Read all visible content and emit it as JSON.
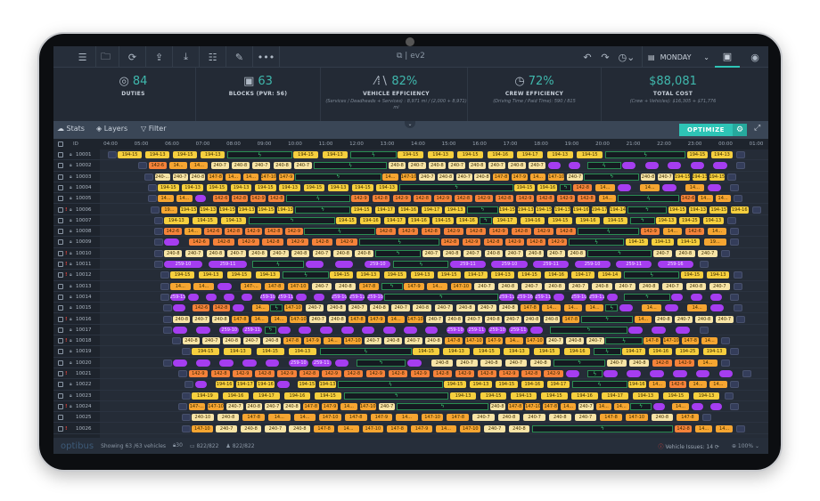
{
  "topbar": {
    "title": "ev2",
    "day": "MONDAY"
  },
  "kpis": [
    {
      "value": "84",
      "label": "DUTIES",
      "sub": ""
    },
    {
      "value": "63",
      "label": "BLOCKS (PVR: 56)",
      "sub": ""
    },
    {
      "value": "82%",
      "label": "VEHICLE EFFICIENCY",
      "sub": "(Services / Deadheads + Services) : 8,971 mi / (2,000 + 8,971) mi"
    },
    {
      "value": "72%",
      "label": "CREW EFFICIENCY",
      "sub": "(Driving Time / Paid Time): 590 / 815"
    },
    {
      "value": "$88,081",
      "label": "TOTAL COST",
      "sub": "(Crew + Vehicles): $16,305 + $71,776"
    }
  ],
  "toolbar": {
    "stats": "Stats",
    "layers": "Layers",
    "filter": "Filter",
    "optimize": "OPTIMIZE"
  },
  "timeline": {
    "id_label": "ID",
    "hours": [
      "04:00",
      "05:00",
      "06:00",
      "07:00",
      "08:00",
      "09:00",
      "10:00",
      "11:00",
      "12:00",
      "13:00",
      "14:00",
      "15:00",
      "16:00",
      "17:00",
      "18:00",
      "19:00",
      "20:00",
      "21:00",
      "22:00",
      "23:00",
      "00:00",
      "01:00"
    ]
  },
  "colors": {
    "accent": "#2ec4b6",
    "yellow": "#f6cf3e",
    "cream": "#f7e4a6",
    "orange": "#f5823a",
    "amber": "#f6a531",
    "purple": "#a53df0",
    "charge": "#2a8d52",
    "alert": "#e0443c"
  },
  "rows": [
    {
      "id": "10001",
      "lock": true,
      "alert": false,
      "start": 4.2,
      "end": 24.3,
      "charges": [
        [
          7.8,
          9.9
        ],
        [
          11.8,
          13.3
        ],
        [
          20.1,
          22.7
        ]
      ],
      "trips": [
        "194-15",
        "194-13",
        "194-15",
        "194-13",
        "194-15",
        "194-13",
        "194-15",
        "194-13",
        "194-15",
        "194-16",
        "194-17",
        "194-13",
        "194-15",
        "194-15",
        "194-13"
      ]
    },
    {
      "id": "10002",
      "lock": true,
      "alert": false,
      "start": 5.2,
      "end": 24.3,
      "charges": [
        [
          10.6,
          13.0
        ],
        [
          19.5,
          20.6
        ]
      ],
      "trips": [
        "142-6",
        "14...",
        "14...",
        "240-7",
        "240-8",
        "240-7",
        "240-8",
        "240-7",
        "240-8",
        "240-7",
        "240-8",
        "240-7",
        "240-8",
        "240-7",
        "240-8",
        "240-7",
        "",
        "",
        "",
        "",
        "",
        "",
        ""
      ]
    },
    {
      "id": "10003",
      "lock": true,
      "alert": false,
      "start": 5.4,
      "end": 24.0,
      "charges": [
        [
          10.0,
          12.8
        ],
        [
          19.4,
          21.2
        ]
      ],
      "trips": [
        "240-...",
        "240-7",
        "240-8",
        "147-8",
        "14...",
        "14...",
        "147-10",
        "147-9",
        "14...",
        "147-10",
        "240-7",
        "240-8",
        "240-7",
        "240-8",
        "147-8",
        "147-9",
        "14...",
        "147-10",
        "240-7",
        "240-8",
        "240-7",
        "194-15",
        "194-13",
        "194-15"
      ]
    },
    {
      "id": "10004",
      "lock": true,
      "alert": false,
      "start": 5.5,
      "end": 24.1,
      "charges": [
        [
          13.4,
          17.1
        ],
        [
          18.6,
          19.0
        ]
      ],
      "trips": [
        "194-15",
        "194-13",
        "194-15",
        "194-13",
        "194-15",
        "194-13",
        "194-15",
        "194-13",
        "194-15",
        "194-13",
        "194-15",
        "194-16",
        "142-8",
        "14...",
        "",
        "14...",
        "",
        "14...",
        ""
      ]
    },
    {
      "id": "10005",
      "lock": true,
      "alert": false,
      "start": 5.5,
      "end": 24.2,
      "charges": [
        [
          9.7,
          11.8
        ],
        [
          20.5,
          22.5
        ]
      ],
      "trips": [
        "14...",
        "14...",
        "",
        "142-6",
        "142-8",
        "142-9",
        "142-8",
        "142-9",
        "142-8",
        "142-9",
        "142-8",
        "142-9",
        "142-8",
        "142-9",
        "142-8",
        "142-9",
        "142-8",
        "142-9",
        "142-8",
        "14...",
        "142-6",
        "14...",
        "14..."
      ]
    },
    {
      "id": "10006",
      "lock": true,
      "alert": true,
      "start": 5.6,
      "end": 24.8,
      "charges": [
        [
          10.0,
          11.8
        ],
        [
          15.6,
          16.6
        ],
        [
          20.8,
          22.1
        ]
      ],
      "trips": [
        "19...",
        "194-15",
        "194-13",
        "194-15",
        "194-13",
        "194-15",
        "194-13",
        "194-15",
        "194-17",
        "194-16",
        "194-17",
        "194-13",
        "194-15",
        "194-13",
        "194-15",
        "194-13",
        "194-16",
        "194-17",
        "194-14",
        "194-15",
        "194-13",
        "194-15",
        "194-16"
      ]
    },
    {
      "id": "10007",
      "lock": true,
      "alert": false,
      "start": 5.7,
      "end": 24.0,
      "charges": [
        [
          8.5,
          11.3
        ],
        [
          16.0,
          16.4
        ],
        [
          20.9,
          21.7
        ]
      ],
      "trips": [
        "194-13",
        "194-15",
        "194-13",
        "194-15",
        "194-16",
        "194-17",
        "194-16",
        "194-15",
        "194-16",
        "194-17",
        "194-16",
        "194-15",
        "194-16",
        "194-15",
        "194-13",
        "194-25",
        "194-13"
      ]
    },
    {
      "id": "10008",
      "lock": true,
      "alert": false,
      "start": 5.7,
      "end": 24.1,
      "charges": [
        [
          10.3,
          12.6
        ],
        [
          19.2,
          21.2
        ]
      ],
      "trips": [
        "142-6",
        "14...",
        "142-6",
        "142-8",
        "142-9",
        "142-8",
        "142-9",
        "142-8",
        "142-9",
        "142-8",
        "142-9",
        "142-8",
        "142-9",
        "142-8",
        "142-9",
        "142-8",
        "142-9",
        "14...",
        "142-6",
        "14..."
      ]
    },
    {
      "id": "10009",
      "lock": true,
      "alert": false,
      "start": 5.7,
      "end": 24.1,
      "charges": [
        [
          12.1,
          14.7
        ],
        [
          18.9,
          20.7
        ]
      ],
      "trips": [
        "",
        "142-6",
        "142-8",
        "142-9",
        "142-8",
        "142-9",
        "142-8",
        "142-9",
        "142-8",
        "142-9",
        "142-8",
        "142-9",
        "142-8",
        "142-9",
        "194-15",
        "194-13",
        "194-15",
        "19..."
      ]
    },
    {
      "id": "10010",
      "lock": true,
      "alert": true,
      "start": 5.7,
      "end": 23.8,
      "charges": [
        [
          12.6,
          14.1
        ],
        [
          19.5,
          21.6
        ]
      ],
      "trips": [
        "240-8",
        "240-7",
        "240-8",
        "240-7",
        "240-8",
        "240-7",
        "240-8",
        "240-7",
        "240-8",
        "240-8",
        "240-7",
        "240-8",
        "240-7",
        "240-8",
        "240-7",
        "240-8",
        "240-7",
        "240-8",
        "240-7",
        "240-8",
        "240-7"
      ]
    },
    {
      "id": "10011",
      "lock": true,
      "alert": true,
      "start": 5.7,
      "end": 23.1,
      "charges": [
        [
          8.6,
          10.3
        ],
        [
          13.2,
          15.0
        ]
      ],
      "trips": [
        "259-10",
        "259-11",
        "",
        "",
        "259-10",
        "259-11",
        "259-10",
        "259-11",
        "259-10",
        "259-11",
        "259-16"
      ]
    },
    {
      "id": "10012",
      "lock": true,
      "alert": true,
      "start": 5.9,
      "end": 24.2,
      "charges": [
        [
          9.6,
          11.1
        ],
        [
          20.7,
          22.5
        ]
      ],
      "trips": [
        "194-15",
        "194-13",
        "194-15",
        "194-13",
        "194-15",
        "194-13",
        "194-15",
        "194-13",
        "194-15",
        "194-17",
        "194-13",
        "194-15",
        "194-16",
        "194-17",
        "194-14",
        "194-15",
        "194-13"
      ]
    },
    {
      "id": "10013",
      "lock": true,
      "alert": false,
      "start": 5.9,
      "end": 24.2,
      "charges": [
        [
          12.8,
          13.5
        ]
      ],
      "trips": [
        "14...",
        "14...",
        "",
        "147-...",
        "147-8",
        "147-10",
        "240-7",
        "240-8",
        "147-8",
        "147-9",
        "14...",
        "147-10",
        "240-7",
        "240-8",
        "240-7",
        "240-8",
        "240-7",
        "240-8",
        "240-7",
        "240-8",
        "240-7",
        "240-8",
        "240-7"
      ]
    },
    {
      "id": "10014",
      "lock": true,
      "alert": false,
      "start": 5.9,
      "end": 24.1,
      "charges": [
        [
          12.9,
          16.6
        ],
        [
          20.7,
          22.2
        ]
      ],
      "trips": [
        "259-15",
        "",
        "",
        "",
        "",
        "259-10",
        "259-11",
        "",
        "",
        "259-10",
        "259-11",
        "259-10",
        "259-11",
        "259-16",
        "259-11",
        "",
        "259-10",
        "259-11",
        "",
        "",
        "",
        ""
      ]
    },
    {
      "id": "10015",
      "lock": true,
      "alert": false,
      "start": 6.0,
      "end": 24.2,
      "charges": [
        [
          9.2,
          9.6
        ],
        [
          20.1,
          20.5
        ]
      ],
      "trips": [
        "",
        "142-6",
        "142-8",
        "",
        "14...",
        "147-10",
        "240-7",
        "240-8",
        "240-7",
        "240-8",
        "240-7",
        "240-8",
        "240-7",
        "240-8",
        "240-7",
        "240-8",
        "147-8",
        "14...",
        "14...",
        "14...",
        "",
        "14...",
        "",
        "14...",
        ""
      ]
    },
    {
      "id": "10016",
      "lock": true,
      "alert": true,
      "start": 6.0,
      "end": 24.3,
      "charges": [
        [
          19.3,
          21.0
        ]
      ],
      "trips": [
        "240-8",
        "240-7",
        "240-8",
        "147-8",
        "14...",
        "14...",
        "147-10",
        "240-7",
        "240-8",
        "147-8",
        "147-9",
        "14...",
        "147-10",
        "240-7",
        "240-8",
        "240-7",
        "240-8",
        "240-7",
        "240-8",
        "240-8",
        "147-8",
        "14...",
        "240-8",
        "240-7",
        "240-8",
        "240-7"
      ]
    },
    {
      "id": "10017",
      "lock": true,
      "alert": false,
      "start": 6.0,
      "end": 23.1,
      "charges": [
        [
          9.0,
          9.4
        ],
        [
          18.3,
          20.8
        ]
      ],
      "trips": [
        "",
        "",
        "259-10",
        "259-11",
        "",
        "",
        "",
        "",
        "",
        "",
        "",
        "",
        "259-10",
        "259-11",
        "259-10",
        "259-11",
        "",
        "",
        "",
        ""
      ]
    },
    {
      "id": "10018",
      "lock": true,
      "alert": true,
      "start": 6.3,
      "end": 23.8,
      "charges": [
        [
          20.1,
          21.3
        ]
      ],
      "trips": [
        "240-8",
        "240-7",
        "240-8",
        "240-7",
        "240-8",
        "147-8",
        "147-9",
        "14...",
        "147-10",
        "240-7",
        "240-8",
        "240-7",
        "240-8",
        "147-8",
        "147-10",
        "147-9",
        "14...",
        "147-10",
        "240-7",
        "240-8",
        "240-7",
        "147-8",
        "147-10",
        "147-8",
        "14..."
      ]
    },
    {
      "id": "10019",
      "lock": true,
      "alert": false,
      "start": 6.6,
      "end": 24.1,
      "charges": [
        [
          10.8,
          13.8
        ],
        [
          19.7,
          20.6
        ]
      ],
      "trips": [
        "194-15",
        "194-13",
        "194-15",
        "194-13",
        "194-15",
        "194-13",
        "194-15",
        "194-13",
        "194-15",
        "194-16",
        "194-17",
        "194-16",
        "194-25",
        "194-13"
      ]
    },
    {
      "id": "10020",
      "lock": true,
      "alert": false,
      "start": 6.0,
      "end": 23.8,
      "charges": [
        [
          12.0,
          13.6
        ],
        [
          18.4,
          20.1
        ]
      ],
      "trips": [
        "",
        "",
        "",
        "",
        "",
        "259-10",
        "259-11",
        "",
        "",
        "240-8",
        "240-7",
        "240-8",
        "240-7",
        "240-8",
        "240-7",
        "240-8",
        "142-8",
        "142-9",
        "14..."
      ]
    },
    {
      "id": "10021",
      "lock": false,
      "alert": true,
      "start": 6.5,
      "end": 24.5,
      "charges": [
        [
          19.5,
          20.0
        ]
      ],
      "trips": [
        "142-9",
        "142-8",
        "142-9",
        "142-8",
        "142-9",
        "142-8",
        "142-9",
        "142-8",
        "142-9",
        "142-8",
        "142-9",
        "142-8",
        "142-9",
        "142-8",
        "142-9",
        "142-8",
        "142-9",
        "",
        "",
        "",
        "",
        "",
        "",
        ""
      ]
    },
    {
      "id": "10022",
      "lock": true,
      "alert": false,
      "start": 6.7,
      "end": 24.1,
      "charges": [
        [
          11.4,
          14.8
        ],
        [
          19.0,
          20.8
        ]
      ],
      "trips": [
        "",
        "194-16",
        "194-17",
        "194-16",
        "",
        "194-15",
        "194-13",
        "194-15",
        "194-13",
        "194-15",
        "194-16",
        "194-17",
        "194-16",
        "14...",
        "142-6",
        "14...",
        "14..."
      ]
    },
    {
      "id": "10023",
      "lock": true,
      "alert": false,
      "start": 6.6,
      "end": 23.9,
      "charges": [
        [
          11.6,
          15.0
        ]
      ],
      "trips": [
        "194-19",
        "194-16",
        "194-17",
        "194-16",
        "194-15",
        "194-13",
        "194-15",
        "194-13",
        "194-15",
        "194-16",
        "194-17",
        "194-13",
        "194-15",
        "194-13"
      ]
    },
    {
      "id": "10024",
      "lock": true,
      "alert": true,
      "start": 6.5,
      "end": 24.1,
      "charges": [
        [
          13.3,
          16.3
        ],
        [
          20.9,
          21.6
        ]
      ],
      "trips": [
        "147-...",
        "147-10",
        "240-7",
        "240-8",
        "240-7",
        "240-8",
        "147-8",
        "147-9",
        "14...",
        "147-10",
        "240-7",
        "240-8",
        "147-8",
        "147-10",
        "147-8",
        "14...",
        "240-7",
        "14...",
        "14...",
        "",
        "14...",
        "",
        ""
      ]
    },
    {
      "id": "10025",
      "lock": false,
      "alert": false,
      "start": 6.6,
      "end": 23.2,
      "charges": [],
      "trips": [
        "240-10",
        "240-8",
        "147-8",
        "14...",
        "14...",
        "147-10",
        "147-8",
        "147-9",
        "14...",
        "147-10",
        "147-8",
        "240-7",
        "240-8",
        "240-7",
        "240-8",
        "240-7",
        "147-8",
        "147-10",
        "240-8",
        "147-8"
      ]
    },
    {
      "id": "10026",
      "lock": false,
      "alert": true,
      "start": 6.6,
      "end": 24.3,
      "charges": [
        [
          17.7,
          22.3
        ]
      ],
      "trips": [
        "147-10",
        "240-7",
        "240-8",
        "240-7",
        "240-8",
        "147-8",
        "14...",
        "147-10",
        "147-8",
        "147-9",
        "14...",
        "147-10",
        "240-7",
        "240-8",
        "142-8",
        "14...",
        "14..."
      ]
    }
  ],
  "footer": {
    "logo": "optibus",
    "showing": "Showing 63 /63 vehicles",
    "count": "30",
    "vehicles": "822/822",
    "crew": "822/822",
    "issues": "Vehicle Issues: 14",
    "zoom": "100%"
  }
}
